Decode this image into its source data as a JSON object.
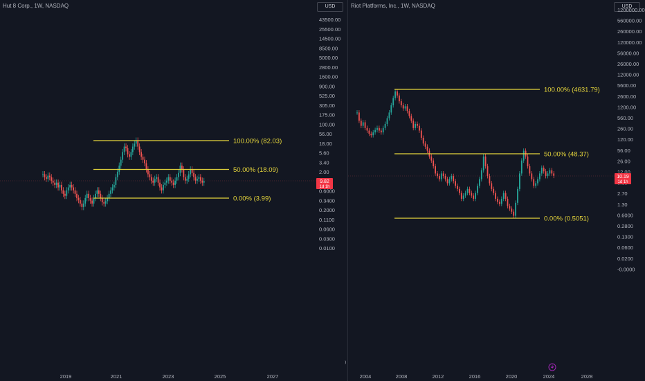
{
  "colors": {
    "background": "#131722",
    "fib_line": "#e6d63c",
    "up": "#26a69a",
    "down": "#ef5350",
    "price_badge": "#f23645"
  },
  "chart_data": [
    {
      "type": "candlestick",
      "title": "Hut 8 Corp., 1W, NASDAQ",
      "currency": "USD",
      "yscale": "log",
      "y_ticks": [
        "43500.00",
        "25500.00",
        "14500.00",
        "8500.00",
        "5000.00",
        "2800.00",
        "1600.00",
        "900.00",
        "525.00",
        "305.00",
        "175.00",
        "100.00",
        "56.00",
        "18.00",
        "5.60",
        "3.40",
        "2.00",
        "1.10",
        "0.6000",
        "0.3400",
        "0.2000",
        "0.1100",
        "0.0600",
        "0.0300",
        "0.0100"
      ],
      "x_ticks": [
        "2019",
        "2021",
        "2023",
        "2025",
        "2027"
      ],
      "last_price": "9.82",
      "countdown": "1d 1h",
      "fib_levels": [
        {
          "label": "100.00% (82.03)",
          "value": 82.03
        },
        {
          "label": "50.00% (18.09)",
          "value": 18.09
        },
        {
          "label": "0.00% (3.99)",
          "value": 3.99
        }
      ],
      "series_closes": [
        14,
        12,
        11,
        13,
        12,
        10,
        9,
        8,
        9,
        7,
        8,
        6,
        5,
        4.5,
        6,
        7,
        8,
        7,
        6,
        5,
        4,
        3.6,
        3,
        2.5,
        3,
        4,
        5,
        4,
        3.5,
        3,
        4,
        5,
        6,
        5,
        4,
        3.2,
        3,
        3.4,
        4,
        5,
        6,
        7,
        8,
        12,
        16,
        22,
        30,
        45,
        60,
        55,
        40,
        35,
        45,
        60,
        70,
        82,
        60,
        45,
        35,
        30,
        25,
        18,
        14,
        12,
        10,
        9,
        11,
        12,
        9,
        7,
        6,
        8,
        9,
        10,
        12,
        10,
        9,
        8,
        10,
        12,
        15,
        22,
        18,
        12,
        10,
        11,
        14,
        18,
        15,
        12,
        10,
        11,
        12,
        10,
        9,
        9.82
      ]
    },
    {
      "type": "candlestick",
      "title": "Riot Platforms, Inc., 1W, NASDAQ",
      "currency": "USD",
      "yscale": "log",
      "y_ticks": [
        "1200000.00",
        "560000.00",
        "260000.00",
        "120000.00",
        "56000.00",
        "26000.00",
        "12000.00",
        "5600.00",
        "2600.00",
        "1200.00",
        "560.00",
        "260.00",
        "120.00",
        "56.00",
        "26.00",
        "12.00",
        "5.60",
        "2.70",
        "1.30",
        "0.6000",
        "0.2800",
        "0.1300",
        "0.0600",
        "0.0200",
        "-0.0000"
      ],
      "x_ticks": [
        "2004",
        "2008",
        "2012",
        "2016",
        "2020",
        "2024",
        "2028"
      ],
      "last_price": "10.19",
      "countdown": "1d 1h",
      "fib_levels": [
        {
          "label": "100.00% (4631.79)",
          "value": 4631.79
        },
        {
          "label": "50.00% (48.37)",
          "value": 48.37
        },
        {
          "label": "0.00% (0.5051)",
          "value": 0.5051
        }
      ],
      "series_closes": [
        900,
        500,
        350,
        450,
        300,
        250,
        200,
        180,
        220,
        260,
        300,
        250,
        220,
        300,
        400,
        600,
        900,
        1500,
        2500,
        4000,
        3000,
        2000,
        1500,
        1200,
        1400,
        1000,
        700,
        500,
        300,
        400,
        350,
        250,
        150,
        100,
        80,
        60,
        40,
        30,
        20,
        12,
        10,
        8,
        12,
        10,
        8,
        6,
        8,
        10,
        7,
        5,
        4,
        3,
        2,
        2.5,
        3,
        4,
        3,
        2.5,
        2,
        3,
        5,
        8,
        15,
        40,
        20,
        10,
        6,
        4,
        3,
        2,
        1.6,
        1.4,
        2,
        3,
        2,
        1.2,
        1,
        0.8,
        0.6,
        1.5,
        4,
        12,
        30,
        60,
        40,
        20,
        12,
        8,
        5,
        6,
        8,
        12,
        18,
        14,
        10,
        12,
        15,
        12,
        10.19
      ]
    }
  ]
}
